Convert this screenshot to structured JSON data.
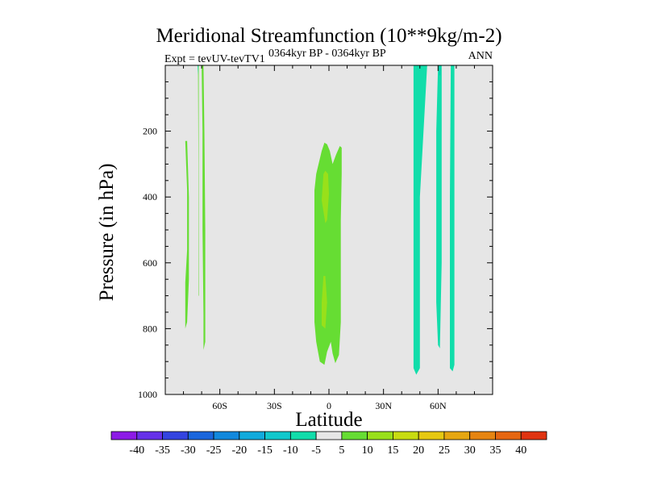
{
  "chart_data": {
    "type": "contour",
    "title": "Meridional Streamfunction (10**9kg/m-2)",
    "subtitle_left": "Expt = tevUV-tevTV1",
    "subtitle_center": "0364kyr BP - 0364kyr BP",
    "subtitle_right": "ANN",
    "xlabel": "Latitude",
    "ylabel": "Pressure (in hPa)",
    "xlim": [
      -90,
      90
    ],
    "ylim": [
      1000,
      0
    ],
    "xticks": [
      {
        "value": -60,
        "label": "60S"
      },
      {
        "value": -30,
        "label": "30S"
      },
      {
        "value": 0,
        "label": "0"
      },
      {
        "value": 30,
        "label": "30N"
      },
      {
        "value": 60,
        "label": "60N"
      }
    ],
    "yticks": [
      {
        "value": 200,
        "label": "200"
      },
      {
        "value": 400,
        "label": "400"
      },
      {
        "value": 600,
        "label": "600"
      },
      {
        "value": 800,
        "label": "800"
      },
      {
        "value": 1000,
        "label": "1000"
      }
    ],
    "background_color": "#e6e6e6",
    "regions": [
      {
        "name": "sh-high-lat-positive-strip-1",
        "level": 5,
        "color": "#66dd33",
        "outline": [
          [
            -79,
            230
          ],
          [
            -78,
            380
          ],
          [
            -78,
            560
          ],
          [
            -79,
            660
          ],
          [
            -79,
            800
          ],
          [
            -78,
            780
          ],
          [
            -77,
            650
          ],
          [
            -77,
            400
          ],
          [
            -78,
            230
          ]
        ]
      },
      {
        "name": "sh-high-lat-positive-strip-2",
        "level": 5,
        "color": "#66dd33",
        "outline": [
          [
            -70,
            0
          ],
          [
            -69.5,
            200
          ],
          [
            -69.5,
            500
          ],
          [
            -69,
            760
          ],
          [
            -69,
            865
          ],
          [
            -68,
            840
          ],
          [
            -68,
            500
          ],
          [
            -68.5,
            200
          ],
          [
            -69,
            0
          ]
        ]
      },
      {
        "name": "sh-high-lat-thin-line",
        "level": 5,
        "color": "#66dd33",
        "outline": [
          [
            -72,
            0
          ],
          [
            -71.8,
            300
          ],
          [
            -71.6,
            700
          ],
          [
            -71.4,
            700
          ],
          [
            -71.6,
            300
          ],
          [
            -71.6,
            0
          ]
        ]
      },
      {
        "name": "sh-high-lat-thin-cyan",
        "level": -5,
        "color": "#11ddaa",
        "outline": [
          [
            -72.2,
            0
          ],
          [
            -72,
            30
          ],
          [
            -71.8,
            0
          ]
        ]
      },
      {
        "name": "equatorial-positive-cell",
        "level": 5,
        "color": "#66dd33",
        "outline": [
          [
            -2.5,
            235
          ],
          [
            -4,
            260
          ],
          [
            -7,
            330
          ],
          [
            -8,
            380
          ],
          [
            -8,
            780
          ],
          [
            -7,
            840
          ],
          [
            -5,
            900
          ],
          [
            -2.5,
            910
          ],
          [
            -1,
            870
          ],
          [
            1,
            840
          ],
          [
            2,
            875
          ],
          [
            3.5,
            905
          ],
          [
            5.5,
            880
          ],
          [
            6.5,
            780
          ],
          [
            6.5,
            470
          ],
          [
            7,
            330
          ],
          [
            7,
            250
          ],
          [
            6,
            245
          ],
          [
            4,
            270
          ],
          [
            2,
            300
          ],
          [
            0.5,
            260
          ],
          [
            -1,
            240
          ]
        ]
      },
      {
        "name": "equatorial-upper-core",
        "level": 10,
        "color": "#99e01a",
        "outline": [
          [
            -3,
            330
          ],
          [
            -4,
            410
          ],
          [
            -2,
            480
          ],
          [
            -1,
            470
          ],
          [
            0,
            390
          ],
          [
            -0.5,
            330
          ],
          [
            -2,
            320
          ]
        ]
      },
      {
        "name": "equatorial-lower-core",
        "level": 10,
        "color": "#99e01a",
        "outline": [
          [
            -3,
            640
          ],
          [
            -4,
            720
          ],
          [
            -4,
            790
          ],
          [
            -2,
            800
          ],
          [
            -1,
            720
          ],
          [
            -2,
            640
          ]
        ]
      },
      {
        "name": "nh-midlat-negative-strip-1",
        "level": -5,
        "color": "#11ddaa",
        "outline": [
          [
            46.5,
            0
          ],
          [
            46.5,
            920
          ],
          [
            48,
            940
          ],
          [
            50,
            920
          ],
          [
            50,
            400
          ],
          [
            54,
            0
          ]
        ]
      },
      {
        "name": "nh-highlat-negative-strip-2",
        "level": -5,
        "color": "#11ddaa",
        "outline": [
          [
            60,
            0
          ],
          [
            59,
            200
          ],
          [
            59,
            720
          ],
          [
            60,
            850
          ],
          [
            61,
            860
          ],
          [
            61,
            860
          ],
          [
            62,
            600
          ],
          [
            62,
            0
          ]
        ]
      },
      {
        "name": "nh-highlat-negative-strip-3",
        "level": -5,
        "color": "#11ddaa",
        "outline": [
          [
            67,
            0
          ],
          [
            66.5,
            400
          ],
          [
            66.5,
            920
          ],
          [
            68,
            930
          ],
          [
            69,
            910
          ],
          [
            69,
            0
          ]
        ]
      },
      {
        "name": "nh-highlat-dark-line",
        "level": -10,
        "color": "#00bbbb",
        "outline": [
          [
            60.8,
            0
          ],
          [
            60.8,
            30
          ],
          [
            61.2,
            30
          ],
          [
            61.2,
            0
          ]
        ]
      }
    ],
    "colorbar": {
      "levels": [
        "-40",
        "-35",
        "-30",
        "-25",
        "-20",
        "-15",
        "-10",
        "-5",
        "5",
        "10",
        "15",
        "20",
        "25",
        "30",
        "35",
        "40"
      ],
      "colors": [
        "#8c1ae6",
        "#6630e8",
        "#3344e0",
        "#1a66dd",
        "#1188dd",
        "#11aadd",
        "#11c8cc",
        "#11ddaa",
        "#e6e6e6",
        "#66dd33",
        "#99e01a",
        "#c8dc11",
        "#e6c811",
        "#e6a611",
        "#e68411",
        "#e66611",
        "#e03311"
      ]
    }
  }
}
